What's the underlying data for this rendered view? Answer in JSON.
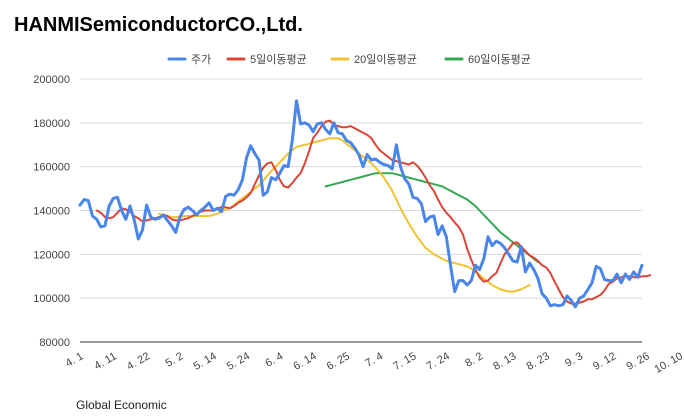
{
  "title": "HANMISemiconductorCO.,Ltd.",
  "source": "Global Economic",
  "chart_data": {
    "type": "line",
    "title": "HANMISemiconductorCO.,Ltd.",
    "xlabel": "",
    "ylabel": "",
    "ylim": [
      80000,
      200000
    ],
    "yticks": [
      80000,
      100000,
      120000,
      140000,
      160000,
      180000,
      200000
    ],
    "ytick_labels": [
      "80000",
      "100000",
      "120000",
      "140000",
      "160000",
      "180000",
      "200000"
    ],
    "grid": "horizontal",
    "legend_position": "top",
    "x_tick_labels": [
      "4. 1",
      "4. 11",
      "4. 22",
      "5. 2",
      "5. 14",
      "5. 24",
      "6. 4",
      "6. 14",
      "6. 25",
      "7. 4",
      "7. 15",
      "7. 24",
      "8. 2",
      "8. 13",
      "8. 23",
      "9. 3",
      "9. 12",
      "9. 26",
      "10. 10"
    ],
    "x_tick_index": [
      0,
      8,
      16,
      24,
      32,
      40,
      48,
      56,
      64,
      72,
      80,
      88,
      96,
      104,
      112,
      120,
      128,
      136,
      144
    ],
    "series": [
      {
        "name": "주가",
        "color": "#4a86e8",
        "start_index": 0,
        "values": [
          142500,
          145000,
          144500,
          137500,
          136000,
          132500,
          133000,
          142000,
          145500,
          146000,
          140000,
          136000,
          142000,
          136000,
          127000,
          131000,
          142500,
          137000,
          136000,
          136500,
          138000,
          135500,
          133000,
          130000,
          137000,
          140500,
          141500,
          140000,
          138000,
          140000,
          141500,
          143500,
          140000,
          141000,
          139500,
          146500,
          147500,
          147000,
          149500,
          154000,
          164000,
          169500,
          166000,
          163000,
          147000,
          148500,
          155000,
          154000,
          157000,
          160500,
          160000,
          172000,
          190000,
          179500,
          180000,
          179000,
          176000,
          179500,
          180000,
          177000,
          175000,
          180000,
          175500,
          175000,
          172000,
          171000,
          168500,
          165500,
          160000,
          165500,
          163000,
          163500,
          162000,
          161000,
          160500,
          159000,
          170000,
          160000,
          154500,
          152000,
          146000,
          145500,
          143000,
          135000,
          137000,
          137500,
          129000,
          133000,
          128000,
          115000,
          103000,
          108000,
          108000,
          106000,
          108000,
          115000,
          113000,
          118000,
          128000,
          124000,
          126000,
          125000,
          123000,
          120000,
          117000,
          116500,
          123500,
          112000,
          116000,
          113000,
          109000,
          102000,
          100000,
          96500,
          97000,
          96500,
          97000,
          101000,
          99000,
          96000,
          100000,
          101000,
          104000,
          107000,
          114500,
          113500,
          108500,
          108000,
          108000,
          111000,
          107000,
          111000,
          108500,
          112000,
          109500,
          115000
        ]
      },
      {
        "name": "5일이동평균",
        "color": "#db4437",
        "start_index": 4,
        "values": [
          140000,
          139000,
          137000,
          136500,
          137000,
          139000,
          141000,
          140500,
          139500,
          137500,
          136500,
          135000,
          135500,
          136000,
          136500,
          137000,
          138000,
          137500,
          136000,
          135500,
          135500,
          136000,
          136500,
          137500,
          138500,
          139500,
          140000,
          140000,
          140000,
          141000,
          141500,
          141500,
          141000,
          142000,
          143500,
          144500,
          146000,
          148000,
          152000,
          156000,
          159500,
          161500,
          162000,
          158500,
          154000,
          151000,
          150500,
          152500,
          155000,
          157000,
          161500,
          167000,
          173000,
          175500,
          178500,
          180500,
          181000,
          179000,
          178500,
          178000,
          178000,
          178500,
          177500,
          176500,
          175500,
          174500,
          173000,
          170000,
          167500,
          166000,
          164500,
          163000,
          162500,
          162000,
          161500,
          161000,
          162000,
          160500,
          158000,
          155000,
          151500,
          149000,
          145000,
          141500,
          139000,
          137000,
          134500,
          132500,
          129000,
          122500,
          117500,
          113000,
          109500,
          107500,
          108000,
          110000,
          111500,
          116000,
          120000,
          122500,
          125000,
          125500,
          123500,
          121500,
          119500,
          118500,
          117000,
          115000,
          114000,
          111500,
          107500,
          104000,
          100500,
          98500,
          97500,
          97500,
          98000,
          98500,
          99500,
          99500,
          100500,
          101500,
          103500,
          106500,
          107500,
          109000,
          109500,
          110000,
          110000,
          109500,
          109500,
          110000,
          110000,
          110500
        ]
      },
      {
        "name": "20일이동평균",
        "color": "#f1c232",
        "start_index": 19,
        "values": [
          138500,
          138000,
          137500,
          137000,
          137000,
          137000,
          137500,
          137500,
          137500,
          137500,
          137500,
          137500,
          137500,
          138000,
          138500,
          139500,
          140500,
          141000,
          142500,
          144000,
          145500,
          147000,
          148500,
          150000,
          151500,
          153500,
          156000,
          158000,
          160000,
          162000,
          164000,
          166000,
          167500,
          169000,
          169500,
          170000,
          170500,
          171000,
          171500,
          172000,
          172500,
          173000,
          173000,
          173000,
          172000,
          170500,
          169000,
          167500,
          166000,
          164500,
          163000,
          161500,
          159500,
          157500,
          155000,
          152000,
          149000,
          145000,
          141000,
          137500,
          134000,
          131000,
          128000,
          125500,
          123000,
          121500,
          120000,
          119000,
          118000,
          117000,
          116500,
          116000,
          115500,
          115000,
          114500,
          113500,
          112000,
          110500,
          109000,
          107500,
          106000,
          105000,
          104000,
          103500,
          103000,
          103000,
          103500,
          104000,
          105000,
          106000
        ]
      },
      {
        "name": "60일이동평균",
        "color": "#34a853",
        "start_index": 59,
        "values": [
          151000,
          151500,
          152000,
          152500,
          153000,
          153500,
          154000,
          154500,
          155000,
          155500,
          156000,
          156500,
          157000,
          157000,
          157000,
          157000,
          157000,
          156500,
          156000,
          155500,
          155000,
          154500,
          154000,
          153500,
          153000,
          152500,
          152000,
          151500,
          151000,
          150000,
          149000,
          148000,
          147000,
          146000,
          145000,
          143500,
          142000,
          140000,
          138000,
          136000,
          134000,
          132000,
          130000,
          128500,
          127000,
          125500,
          124000,
          122500,
          121000,
          119500,
          118000,
          116500
        ]
      }
    ]
  }
}
